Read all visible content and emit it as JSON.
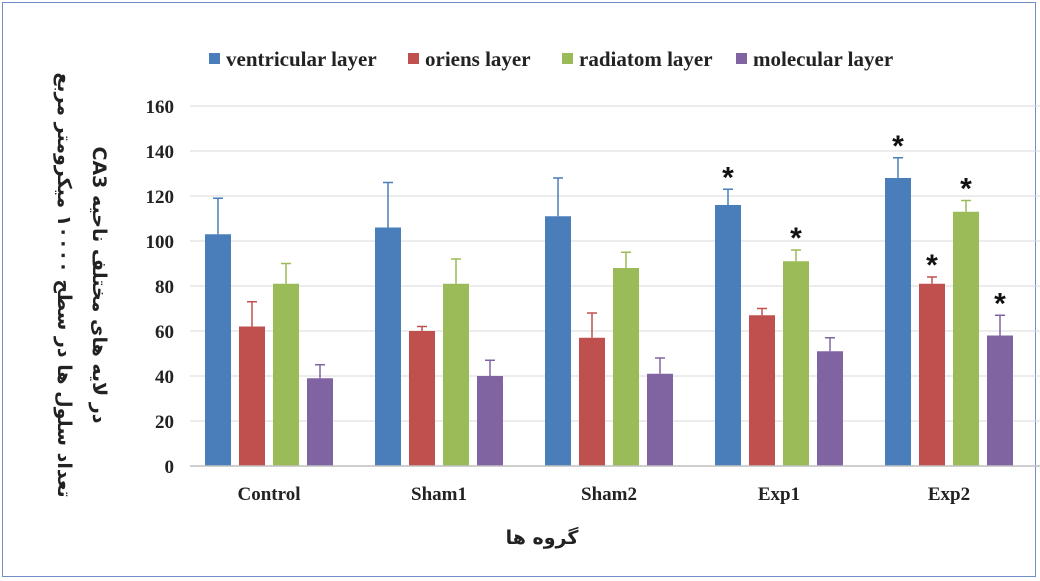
{
  "chart_data": {
    "type": "bar",
    "categories": [
      "Control",
      "Sham1",
      "Sham2",
      "Exp1",
      "Exp2"
    ],
    "series": [
      {
        "name": "ventricular layer",
        "color": "#4a7ebb",
        "values": [
          103,
          106,
          111,
          116,
          128
        ],
        "errors": [
          16,
          20,
          17,
          7,
          9
        ],
        "significant": [
          false,
          false,
          false,
          true,
          true
        ]
      },
      {
        "name": "oriens layer",
        "color": "#c0504d",
        "values": [
          62,
          60,
          57,
          67,
          81
        ],
        "errors": [
          11,
          2,
          11,
          3,
          3
        ],
        "significant": [
          false,
          false,
          false,
          false,
          true
        ]
      },
      {
        "name": "radiatom layer",
        "color": "#9bbb59",
        "values": [
          81,
          81,
          88,
          91,
          113
        ],
        "errors": [
          9,
          11,
          7,
          5,
          5
        ],
        "significant": [
          false,
          false,
          false,
          true,
          true
        ]
      },
      {
        "name": "molecular layer",
        "color": "#8064a2",
        "values": [
          39,
          40,
          41,
          51,
          58
        ],
        "errors": [
          6,
          7,
          7,
          6,
          9
        ],
        "significant": [
          false,
          false,
          false,
          false,
          true
        ]
      }
    ],
    "ylim": [
      0,
      160
    ],
    "yticks": [
      0,
      20,
      40,
      60,
      80,
      100,
      120,
      140,
      160
    ],
    "xlabel": "گروه ها",
    "ylabel_line1": "تعداد سلول ها در سطح ۱۰۰۰۰ میکرومتر مربع",
    "ylabel_line2": "در لایه های مختلف ناحیه  CA3",
    "significance_marker": "*",
    "grid": true,
    "legend_position": "top"
  }
}
